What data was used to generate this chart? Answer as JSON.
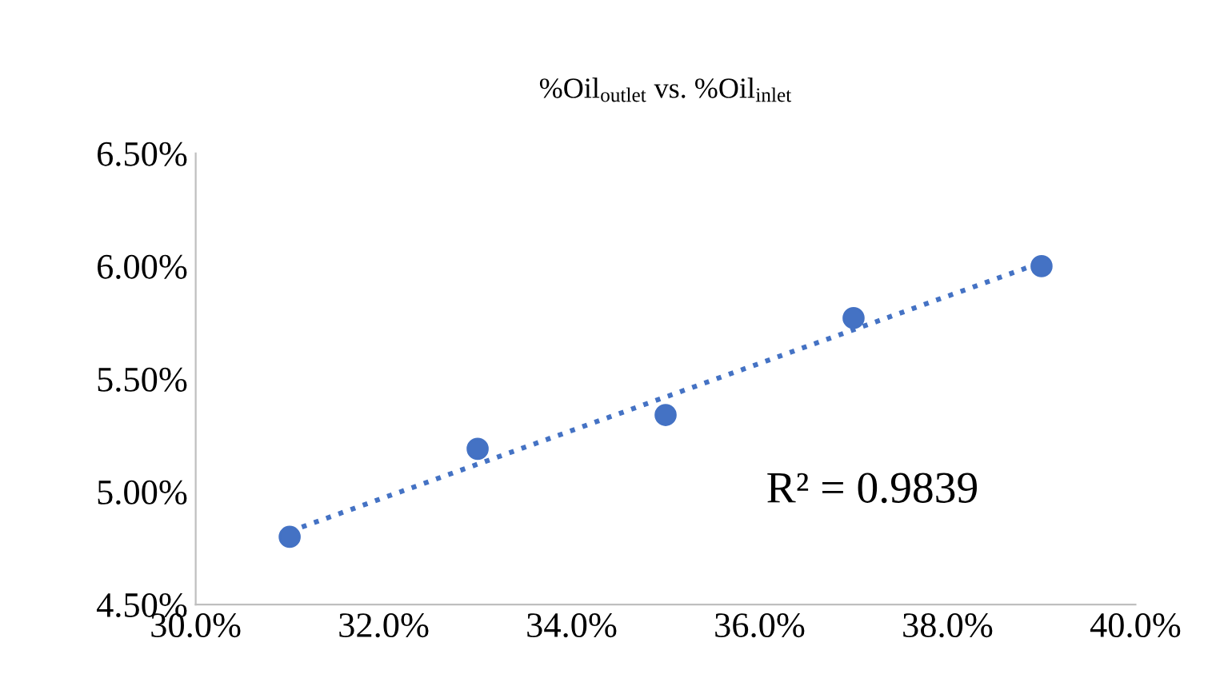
{
  "chart_data": {
    "type": "scatter",
    "title": "%Oil$_{outlet}$ vs. %Oil$_{inlet}$",
    "series": [
      {
        "color": "#4472c4",
        "marker": "circle",
        "x": [
          31,
          33,
          35,
          37,
          39
        ],
        "values": [
          4.8,
          5.19,
          5.34,
          5.77,
          6.0
        ]
      },
      {
        "type": "line",
        "color": "#4472c4",
        "line_style": "dotted",
        "marker": "none",
        "x": [
          31,
          39
        ],
        "values": [
          4.824,
          6.016
        ]
      }
    ],
    "annotations": [
      "R² = 0.9839"
    ],
    "xlim": [
      30,
      40
    ],
    "ylim": [
      4.5,
      6.5
    ],
    "xticks": [
      {
        "value": 30,
        "label": "30.0%"
      },
      {
        "value": 32,
        "label": "32.0%"
      },
      {
        "value": 34,
        "label": "34.0%"
      },
      {
        "value": 36,
        "label": "36.0%"
      },
      {
        "value": 38,
        "label": "38.0%"
      },
      {
        "value": 40,
        "label": "40.0%"
      }
    ],
    "yticks": [
      {
        "value": 4.5,
        "label": "4.50%"
      },
      {
        "value": 5.0,
        "label": "5.00%"
      },
      {
        "value": 5.5,
        "label": "5.50%"
      },
      {
        "value": 6.0,
        "label": "6.00%"
      },
      {
        "value": 6.5,
        "label": "6.50%"
      }
    ],
    "grid": false,
    "legend": false
  }
}
